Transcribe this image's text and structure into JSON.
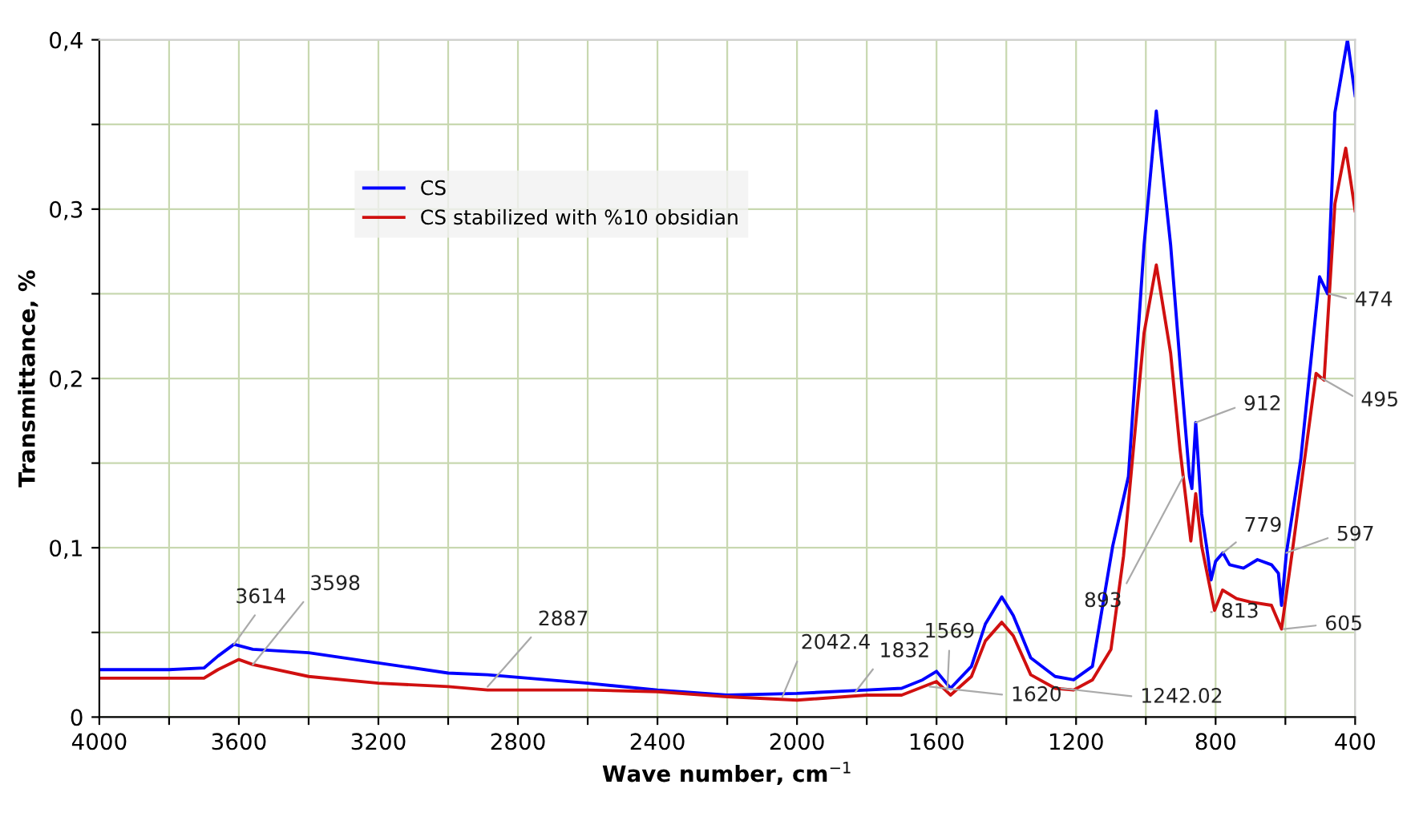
{
  "chart_data": {
    "type": "line",
    "xlabel": "Wave number, cm$^{−1}$",
    "ylabel": "Transmittance, %",
    "xlim": [
      4000,
      400
    ],
    "ylim": [
      0,
      0.4
    ],
    "xticks": [
      4000,
      {
        "value": 3800,
        "label": null
      },
      3600,
      {
        "value": 3400,
        "label": null
      },
      3200,
      {
        "value": 3000,
        "label": null
      },
      2800,
      {
        "value": 2600,
        "label": null
      },
      2400,
      {
        "value": 2200,
        "label": null
      },
      2000,
      {
        "value": 1800,
        "label": null
      },
      1600,
      {
        "value": 1400,
        "label": null
      },
      1200,
      {
        "value": 1000,
        "label": null
      },
      800,
      {
        "value": 600,
        "label": null
      },
      400
    ],
    "yticks": [
      0,
      {
        "value": 0.05,
        "label": null
      },
      {
        "value": 0.1,
        "label": "0,1"
      },
      {
        "value": 0.15,
        "label": null
      },
      {
        "value": 0.2,
        "label": "0,2"
      },
      {
        "value": 0.25,
        "label": null
      },
      {
        "value": 0.3,
        "label": "0,3"
      },
      {
        "value": 0.35,
        "label": null
      },
      {
        "value": 0.4,
        "label": "0,4"
      }
    ],
    "grid": true,
    "legend": "top",
    "marker": "none",
    "line_style": "solid",
    "series": [
      {
        "name": "CS",
        "color": "#0000ff",
        "x": [
          4000,
          3800,
          3700,
          3660,
          3614,
          3560,
          3400,
          3200,
          3000,
          2887,
          2600,
          2400,
          2200,
          2000,
          1800,
          1700,
          1640,
          1600,
          1560,
          1500,
          1460,
          1413,
          1380,
          1330,
          1260,
          1207,
          1153,
          1095,
          1050,
          1005,
          970,
          929,
          902,
          875,
          868,
          857,
          840,
          826,
          813,
          800,
          779,
          760,
          720,
          680,
          640,
          620,
          611,
          597,
          556,
          502,
          479,
          458,
          422,
          400
        ],
        "values": [
          0.028,
          0.028,
          0.029,
          0.036,
          0.043,
          0.04,
          0.038,
          0.032,
          0.026,
          0.025,
          0.02,
          0.016,
          0.013,
          0.014,
          0.016,
          0.017,
          0.022,
          0.027,
          0.017,
          0.03,
          0.055,
          0.071,
          0.06,
          0.035,
          0.024,
          0.022,
          0.03,
          0.101,
          0.142,
          0.279,
          0.358,
          0.279,
          0.209,
          0.142,
          0.135,
          0.174,
          0.12,
          0.101,
          0.081,
          0.092,
          0.097,
          0.09,
          0.088,
          0.093,
          0.09,
          0.085,
          0.066,
          0.097,
          0.152,
          0.26,
          0.25,
          0.357,
          0.4,
          0.367
        ]
      },
      {
        "name": "CS stabilized with %10 obsidian",
        "color": "#d01010",
        "x": [
          4000,
          3700,
          3660,
          3600,
          3560,
          3400,
          3200,
          3000,
          2887,
          2600,
          2400,
          2200,
          2000,
          1800,
          1700,
          1600,
          1560,
          1500,
          1460,
          1413,
          1380,
          1330,
          1260,
          1207,
          1153,
          1100,
          1064,
          1005,
          970,
          929,
          902,
          871,
          857,
          840,
          803,
          780,
          740,
          700,
          640,
          611,
          578,
          512,
          489,
          458,
          427,
          400
        ],
        "values": [
          0.023,
          0.023,
          0.028,
          0.034,
          0.031,
          0.024,
          0.02,
          0.018,
          0.016,
          0.016,
          0.015,
          0.012,
          0.01,
          0.013,
          0.013,
          0.021,
          0.013,
          0.024,
          0.045,
          0.056,
          0.048,
          0.025,
          0.017,
          0.016,
          0.022,
          0.04,
          0.095,
          0.227,
          0.267,
          0.215,
          0.158,
          0.104,
          0.132,
          0.101,
          0.063,
          0.075,
          0.07,
          0.068,
          0.066,
          0.052,
          0.101,
          0.203,
          0.199,
          0.303,
          0.336,
          0.299
        ]
      }
    ],
    "annotations": [
      {
        "text": "3614",
        "x": 3614,
        "y": 0.043
      },
      {
        "text": "3598",
        "x": 3560,
        "y": 0.031
      },
      {
        "text": "2887",
        "x": 2887,
        "y": 0.018
      },
      {
        "text": "2042.4",
        "x": 2042,
        "y": 0.012
      },
      {
        "text": "1832",
        "x": 1832,
        "y": 0.015
      },
      {
        "text": "1569",
        "x": 1569,
        "y": 0.016
      },
      {
        "text": "1620",
        "x": 1620,
        "y": 0.018
      },
      {
        "text": "1242.02",
        "x": 1242,
        "y": 0.017
      },
      {
        "text": "893",
        "x": 893,
        "y": 0.142
      },
      {
        "text": "813",
        "x": 813,
        "y": 0.062
      },
      {
        "text": "779",
        "x": 779,
        "y": 0.097
      },
      {
        "text": "912",
        "x": 857,
        "y": 0.174
      },
      {
        "text": "597",
        "x": 597,
        "y": 0.097
      },
      {
        "text": "605",
        "x": 605,
        "y": 0.052
      },
      {
        "text": "474",
        "x": 474,
        "y": 0.25
      },
      {
        "text": "495",
        "x": 495,
        "y": 0.2
      }
    ]
  }
}
